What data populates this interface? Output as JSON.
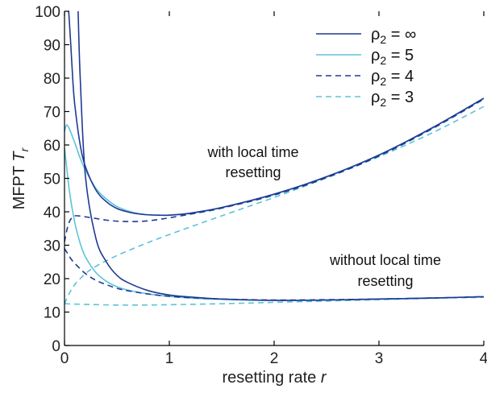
{
  "chart_data": {
    "type": "line",
    "title": "",
    "xlabel_main": "resetting rate ",
    "xlabel_var": "r",
    "ylabel_main": "MFPT ",
    "ylabel_var": "T",
    "ylabel_sub": "r",
    "xlim": [
      0,
      4
    ],
    "ylim": [
      0,
      100
    ],
    "x_ticks": [
      0,
      1,
      2,
      3,
      4
    ],
    "y_ticks": [
      0,
      10,
      20,
      30,
      40,
      50,
      60,
      70,
      80,
      90,
      100
    ],
    "legend_position": "top-right",
    "annotations": [
      {
        "id": "with",
        "lines": [
          "with local time",
          "resetting"
        ]
      },
      {
        "id": "without",
        "lines": [
          "without local time",
          "resetting"
        ]
      }
    ],
    "series": [
      {
        "name": "ρ2 = ∞",
        "legend_main": "ρ",
        "legend_sub": "2",
        "legend_rest": " = ∞",
        "color": "#1f3a93",
        "dash": "solid",
        "group": "with",
        "x": [
          0.04,
          0.06,
          0.08,
          0.1,
          0.15,
          0.2,
          0.3,
          0.4,
          0.5,
          0.6,
          0.7,
          0.8,
          0.9,
          1.0,
          1.2,
          1.5,
          2.0,
          2.5,
          3.0,
          3.5,
          4.0
        ],
        "y": [
          100,
          90,
          79,
          71.5,
          60,
          53.5,
          46.5,
          43,
          41,
          40,
          39.4,
          39.1,
          39,
          39,
          39.6,
          41.3,
          45.3,
          50.5,
          57,
          65,
          74
        ]
      },
      {
        "name": "ρ2 = 5",
        "legend_main": "ρ",
        "legend_sub": "2",
        "legend_rest": " = 5",
        "color": "#5bc3d9",
        "dash": "solid",
        "group": "with",
        "x": [
          0,
          0.02,
          0.05,
          0.1,
          0.15,
          0.2,
          0.3,
          0.4,
          0.5,
          0.6,
          0.7,
          0.8,
          0.9,
          1.0,
          1.2,
          1.5,
          2.0,
          2.5,
          3.0,
          3.5,
          4.0
        ],
        "y": [
          64,
          66,
          64.5,
          60.5,
          56,
          52.5,
          47,
          43.8,
          41.6,
          40.3,
          39.5,
          39.1,
          39,
          39,
          39.5,
          41.2,
          45.2,
          50.4,
          56.9,
          64.9,
          73.9
        ]
      },
      {
        "name": "ρ2 = 4",
        "legend_main": "ρ",
        "legend_sub": "2",
        "legend_rest": " = 4",
        "color": "#1f3a93",
        "dash": "dashed",
        "group": "with",
        "x": [
          0,
          0.03,
          0.06,
          0.1,
          0.2,
          0.3,
          0.4,
          0.5,
          0.6,
          0.7,
          0.8,
          0.9,
          1.0,
          1.2,
          1.5,
          2.0,
          2.5,
          3.0,
          3.5,
          4.0
        ],
        "y": [
          31,
          35.5,
          37.8,
          38.8,
          38.5,
          38,
          37.5,
          37.2,
          37.1,
          37.1,
          37.3,
          37.7,
          38.2,
          39.3,
          41.1,
          45,
          50.2,
          56.7,
          64.7,
          73.7
        ]
      },
      {
        "name": "ρ2 = 3",
        "legend_main": "ρ",
        "legend_sub": "2",
        "legend_rest": " = 3",
        "color": "#5bc3d9",
        "dash": "dashed",
        "group": "with",
        "x": [
          0,
          0.05,
          0.1,
          0.2,
          0.3,
          0.5,
          0.75,
          1.0,
          1.5,
          2.0,
          2.5,
          3.0,
          3.5,
          4.0
        ],
        "y": [
          12.5,
          15.8,
          18.3,
          21.5,
          23.7,
          26.9,
          30.2,
          33.2,
          38.8,
          44.3,
          50.2,
          56.5,
          63.5,
          71.5
        ]
      },
      {
        "name": "ρ2 = ∞ (without local time resetting)",
        "color": "#1f3a93",
        "dash": "solid",
        "group": "without",
        "x": [
          0.13,
          0.15,
          0.2,
          0.3,
          0.4,
          0.5,
          0.6,
          0.8,
          1.0,
          1.2,
          1.5,
          2.0,
          2.5,
          3.0,
          3.5,
          4.0
        ],
        "y": [
          100,
          80,
          50.5,
          32,
          25,
          21,
          18.9,
          16.4,
          15.1,
          14.5,
          13.9,
          13.5,
          13.6,
          13.9,
          14.2,
          14.6
        ]
      },
      {
        "name": "ρ2 = 5 (without local time resetting)",
        "color": "#5bc3d9",
        "dash": "solid",
        "group": "without",
        "x": [
          0,
          0.02,
          0.05,
          0.1,
          0.15,
          0.2,
          0.3,
          0.4,
          0.5,
          0.6,
          0.8,
          1.0,
          1.2,
          1.5,
          2.0,
          2.5,
          3.0,
          3.5,
          4.0
        ],
        "y": [
          59,
          53.5,
          45.5,
          36.5,
          30.5,
          26.5,
          21.8,
          19.2,
          17.6,
          16.6,
          15.4,
          14.7,
          14.2,
          13.8,
          13.5,
          13.6,
          13.9,
          14.2,
          14.6
        ]
      },
      {
        "name": "ρ2 = 4 (without local time resetting)",
        "color": "#1f3a93",
        "dash": "dashed",
        "group": "without",
        "x": [
          0,
          0.03,
          0.06,
          0.1,
          0.2,
          0.3,
          0.4,
          0.5,
          0.6,
          0.8,
          1.0,
          1.2,
          1.5,
          2.0,
          2.5,
          3.0,
          3.5,
          4.0
        ],
        "y": [
          29,
          27.5,
          26,
          24.5,
          21.5,
          19.5,
          18.2,
          17.1,
          16.4,
          15.4,
          14.7,
          14.3,
          13.9,
          13.6,
          13.7,
          13.9,
          14.2,
          14.6
        ]
      },
      {
        "name": "ρ2 = 3 (without local time resetting)",
        "color": "#5bc3d9",
        "dash": "dashed",
        "group": "without",
        "x": [
          0,
          0.2,
          0.5,
          0.75,
          1.0,
          1.5,
          2.0,
          2.5,
          3.0,
          3.5,
          4.0
        ],
        "y": [
          12.5,
          12.3,
          12.1,
          12.1,
          12.2,
          12.5,
          12.9,
          13.3,
          13.7,
          14.1,
          14.4
        ]
      }
    ]
  }
}
